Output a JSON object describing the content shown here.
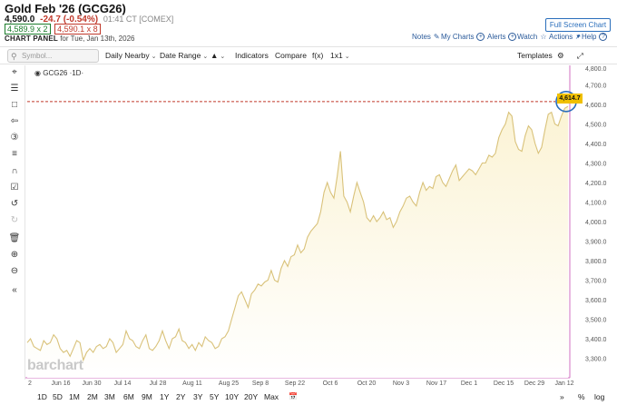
{
  "header": {
    "title": "Gold Feb '26 (GCG26)",
    "last": "4,590.0",
    "change": "-24.7 (-0.54%)",
    "time": "01:41 CT [COMEX]",
    "bid": "4,589.9 x 2",
    "ask": "4,590.1 x 8",
    "panel_label": "CHART PANEL",
    "panel_date": "for Tue, Jan 13th, 2026",
    "full_screen": "Full Screen Chart ↗"
  },
  "links": {
    "notes": "Notes",
    "my_charts": "My Charts",
    "alerts": "Alerts",
    "watch": "Watch",
    "actions": "Actions",
    "help": "Help"
  },
  "toolbar": {
    "search_placeholder": "Symbol...",
    "daily": "Daily Nearby",
    "date_range": "Date Range",
    "indicators": "Indicators",
    "compare": "Compare",
    "fx": "f(x)",
    "layout": "1x1",
    "templates": "Templates"
  },
  "chart": {
    "symbol_label": "GCG26 ·1D·",
    "watermark": "barchart",
    "last_price_tag": "4,614.7"
  },
  "periods": [
    "1D",
    "5D",
    "1M",
    "2M",
    "3M",
    "6M",
    "9M",
    "1Y",
    "2Y",
    "3Y",
    "5Y",
    "10Y",
    "20Y",
    "Max"
  ],
  "bottom_right": {
    "pct": "%",
    "log": "log"
  },
  "colors": {
    "line": "#d9c27a",
    "fill_top": "#fbf3d4",
    "accent_blue": "#2a6ebb",
    "ref_line": "#c0392b",
    "price_tag": "#f0c000"
  },
  "chart_data": {
    "type": "area",
    "title": "",
    "xlabel": "",
    "ylabel": "",
    "ylim": [
      3200,
      4800
    ],
    "x_ticks": [
      "2",
      "Jun 16",
      "Jun 30",
      "Jul 14",
      "Jul 28",
      "Aug 11",
      "Aug 25",
      "Sep 8",
      "Sep 22",
      "Oct 6",
      "Oct 20",
      "Nov 3",
      "Nov 17",
      "Dec 1",
      "Dec 15",
      "Dec 29",
      "Jan 12"
    ],
    "y_ticks": [
      "3,200.0",
      "3,300.0",
      "3,400.0",
      "3,500.0",
      "3,600.0",
      "3,700.0",
      "3,800.0",
      "3,900.0",
      "4,000.0",
      "4,100.0",
      "4,200.0",
      "4,300.0",
      "4,400.0",
      "4,500.0",
      "4,600.0",
      "4,700.0",
      "4,800.0"
    ],
    "reference_line": 4614.7,
    "series": [
      {
        "values": [
          3380,
          3400,
          3360,
          3350,
          3340,
          3390,
          3370,
          3380,
          3420,
          3400,
          3350,
          3330,
          3340,
          3310,
          3350,
          3390,
          3380,
          3290,
          3330,
          3350,
          3330,
          3360,
          3370,
          3350,
          3360,
          3400,
          3380,
          3330,
          3350,
          3370,
          3440,
          3400,
          3390,
          3360,
          3350,
          3390,
          3420,
          3350,
          3340,
          3360,
          3390,
          3440,
          3390,
          3350,
          3400,
          3410,
          3450,
          3390,
          3380,
          3350,
          3370,
          3340,
          3380,
          3360,
          3410,
          3390,
          3380,
          3350,
          3360,
          3400,
          3410,
          3440,
          3500,
          3560,
          3620,
          3640,
          3600,
          3560,
          3630,
          3650,
          3680,
          3670,
          3690,
          3700,
          3750,
          3700,
          3690,
          3760,
          3800,
          3770,
          3820,
          3830,
          3880,
          3840,
          3860,
          3920,
          3950,
          3970,
          3990,
          4050,
          4150,
          4200,
          4150,
          4120,
          4230,
          4360,
          4130,
          4100,
          4050,
          4130,
          4200,
          4150,
          4100,
          4020,
          4000,
          4030,
          4000,
          4020,
          4050,
          4010,
          4020,
          3970,
          4000,
          4050,
          4080,
          4120,
          4130,
          4100,
          4080,
          4150,
          4200,
          4160,
          4180,
          4170,
          4230,
          4240,
          4200,
          4180,
          4220,
          4260,
          4290,
          4210,
          4230,
          4250,
          4270,
          4260,
          4240,
          4270,
          4300,
          4300,
          4340,
          4330,
          4350,
          4430,
          4470,
          4500,
          4560,
          4540,
          4410,
          4370,
          4360,
          4440,
          4490,
          4470,
          4400,
          4350,
          4380,
          4470,
          4550,
          4560,
          4500,
          4490,
          4540,
          4580,
          4590
        ]
      }
    ]
  }
}
